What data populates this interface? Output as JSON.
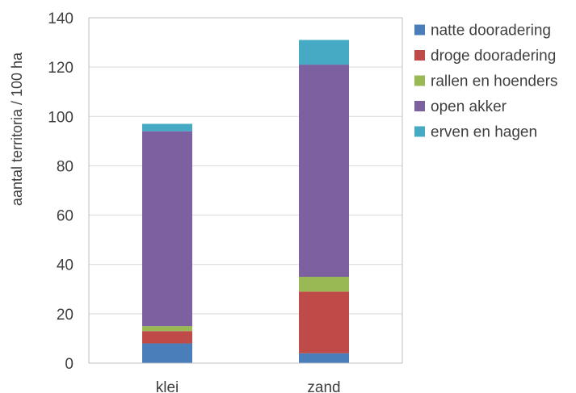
{
  "chart_data": {
    "type": "bar",
    "stacked": true,
    "categories": [
      "klei",
      "zand"
    ],
    "series": [
      {
        "name": "natte dooradering",
        "color": "#4a7ebb",
        "values": [
          8,
          4
        ]
      },
      {
        "name": "droge dooradering",
        "color": "#be4b48",
        "values": [
          5,
          25
        ]
      },
      {
        "name": "rallen en hoenders",
        "color": "#98b954",
        "values": [
          2,
          6
        ]
      },
      {
        "name": "open akker",
        "color": "#7d60a0",
        "values": [
          79,
          86
        ]
      },
      {
        "name": "erven en hagen",
        "color": "#46aac5",
        "values": [
          3,
          10
        ]
      }
    ],
    "title": "",
    "xlabel": "",
    "ylabel": "aantal territoria / 100 ha",
    "ylim": [
      0,
      140
    ],
    "yticks": [
      0,
      20,
      40,
      60,
      80,
      100,
      120,
      140
    ],
    "grid": true,
    "legend": "right"
  }
}
